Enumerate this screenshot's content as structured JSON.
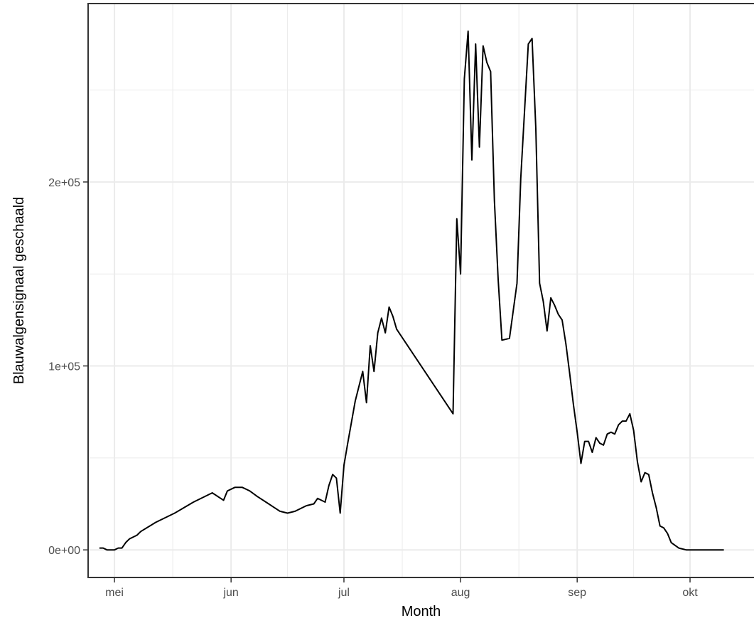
{
  "chart_data": {
    "type": "line",
    "xlabel": "Month",
    "ylabel": "Blauwalgensignaal geschaald",
    "x_tick_labels": [
      "mei",
      "jun",
      "jul",
      "aug",
      "sep",
      "okt"
    ],
    "y_tick_labels": [
      "0e+00",
      "1e+05",
      "2e+05"
    ],
    "y_ticks": [
      0,
      100000,
      200000
    ],
    "xlim": [
      "2023-04-24",
      "2023-10-18"
    ],
    "ylim": [
      -15000,
      297000
    ],
    "grid": true,
    "colors": {
      "line": "#000000",
      "grid": "#ebebeb",
      "panel_border": "#333333",
      "tick": "#4d4d4d"
    },
    "series": [
      {
        "x": [
          "2023-04-27",
          "2023-04-28",
          "2023-04-29",
          "2023-04-30",
          "2023-05-01",
          "2023-05-02",
          "2023-05-03",
          "2023-05-04",
          "2023-05-05",
          "2023-05-06",
          "2023-05-07",
          "2023-05-08",
          "2023-05-12",
          "2023-05-17",
          "2023-05-22",
          "2023-05-27",
          "2023-05-30",
          "2023-05-31",
          "2023-06-01",
          "2023-06-02",
          "2023-06-04",
          "2023-06-06",
          "2023-06-08",
          "2023-06-11",
          "2023-06-14",
          "2023-06-16",
          "2023-06-18",
          "2023-06-21",
          "2023-06-23",
          "2023-06-24",
          "2023-06-25",
          "2023-06-26",
          "2023-06-27",
          "2023-06-28",
          "2023-06-29",
          "2023-06-30",
          "2023-07-01",
          "2023-07-02",
          "2023-07-04",
          "2023-07-06",
          "2023-07-07",
          "2023-07-08",
          "2023-07-09",
          "2023-07-10",
          "2023-07-11",
          "2023-07-12",
          "2023-07-13",
          "2023-07-14",
          "2023-07-15",
          "2023-07-30",
          "2023-07-31",
          "2023-08-01",
          "2023-08-02",
          "2023-08-03",
          "2023-08-04",
          "2023-08-05",
          "2023-08-06",
          "2023-08-07",
          "2023-08-08",
          "2023-08-09",
          "2023-08-10",
          "2023-08-11",
          "2023-08-12",
          "2023-08-14",
          "2023-08-15",
          "2023-08-16",
          "2023-08-17",
          "2023-08-19",
          "2023-08-20",
          "2023-08-21",
          "2023-08-22",
          "2023-08-23",
          "2023-08-24",
          "2023-08-25",
          "2023-08-26",
          "2023-08-27",
          "2023-08-28",
          "2023-08-29",
          "2023-08-30",
          "2023-08-31",
          "2023-09-01",
          "2023-09-02",
          "2023-09-03",
          "2023-09-04",
          "2023-09-05",
          "2023-09-06",
          "2023-09-07",
          "2023-09-08",
          "2023-09-09",
          "2023-09-10",
          "2023-09-11",
          "2023-09-12",
          "2023-09-13",
          "2023-09-14",
          "2023-09-15",
          "2023-09-16",
          "2023-09-17",
          "2023-09-18",
          "2023-09-19",
          "2023-09-20",
          "2023-09-21",
          "2023-09-22",
          "2023-09-23",
          "2023-09-24",
          "2023-09-25",
          "2023-09-26",
          "2023-09-28",
          "2023-09-30",
          "2023-10-02",
          "2023-10-04",
          "2023-10-06",
          "2023-10-08",
          "2023-10-10"
        ],
        "y": [
          1000,
          1000,
          0,
          0,
          0,
          1000,
          1000,
          4000,
          6000,
          7000,
          8000,
          10000,
          15000,
          20000,
          26000,
          31000,
          27000,
          32000,
          33000,
          34000,
          34000,
          32000,
          29000,
          25000,
          21000,
          20000,
          21000,
          24000,
          25000,
          28000,
          27000,
          26000,
          35000,
          41000,
          39000,
          20000,
          46000,
          58000,
          81000,
          97000,
          80000,
          111000,
          97000,
          118000,
          126000,
          118000,
          132000,
          127000,
          120000,
          74000,
          180000,
          150000,
          256000,
          282000,
          212000,
          275000,
          219000,
          274000,
          265000,
          260000,
          190000,
          147000,
          114000,
          115000,
          130000,
          145000,
          202000,
          275000,
          278000,
          229000,
          145000,
          135000,
          119000,
          137000,
          133000,
          128000,
          125000,
          112000,
          96000,
          79000,
          64000,
          47000,
          59000,
          59000,
          53000,
          61000,
          58000,
          57000,
          63000,
          64000,
          63000,
          68000,
          70000,
          70000,
          74000,
          65000,
          48000,
          37000,
          42000,
          41000,
          31000,
          23000,
          13000,
          12000,
          9000,
          4000,
          1000,
          0,
          0,
          0,
          0,
          0,
          0
        ]
      }
    ]
  }
}
